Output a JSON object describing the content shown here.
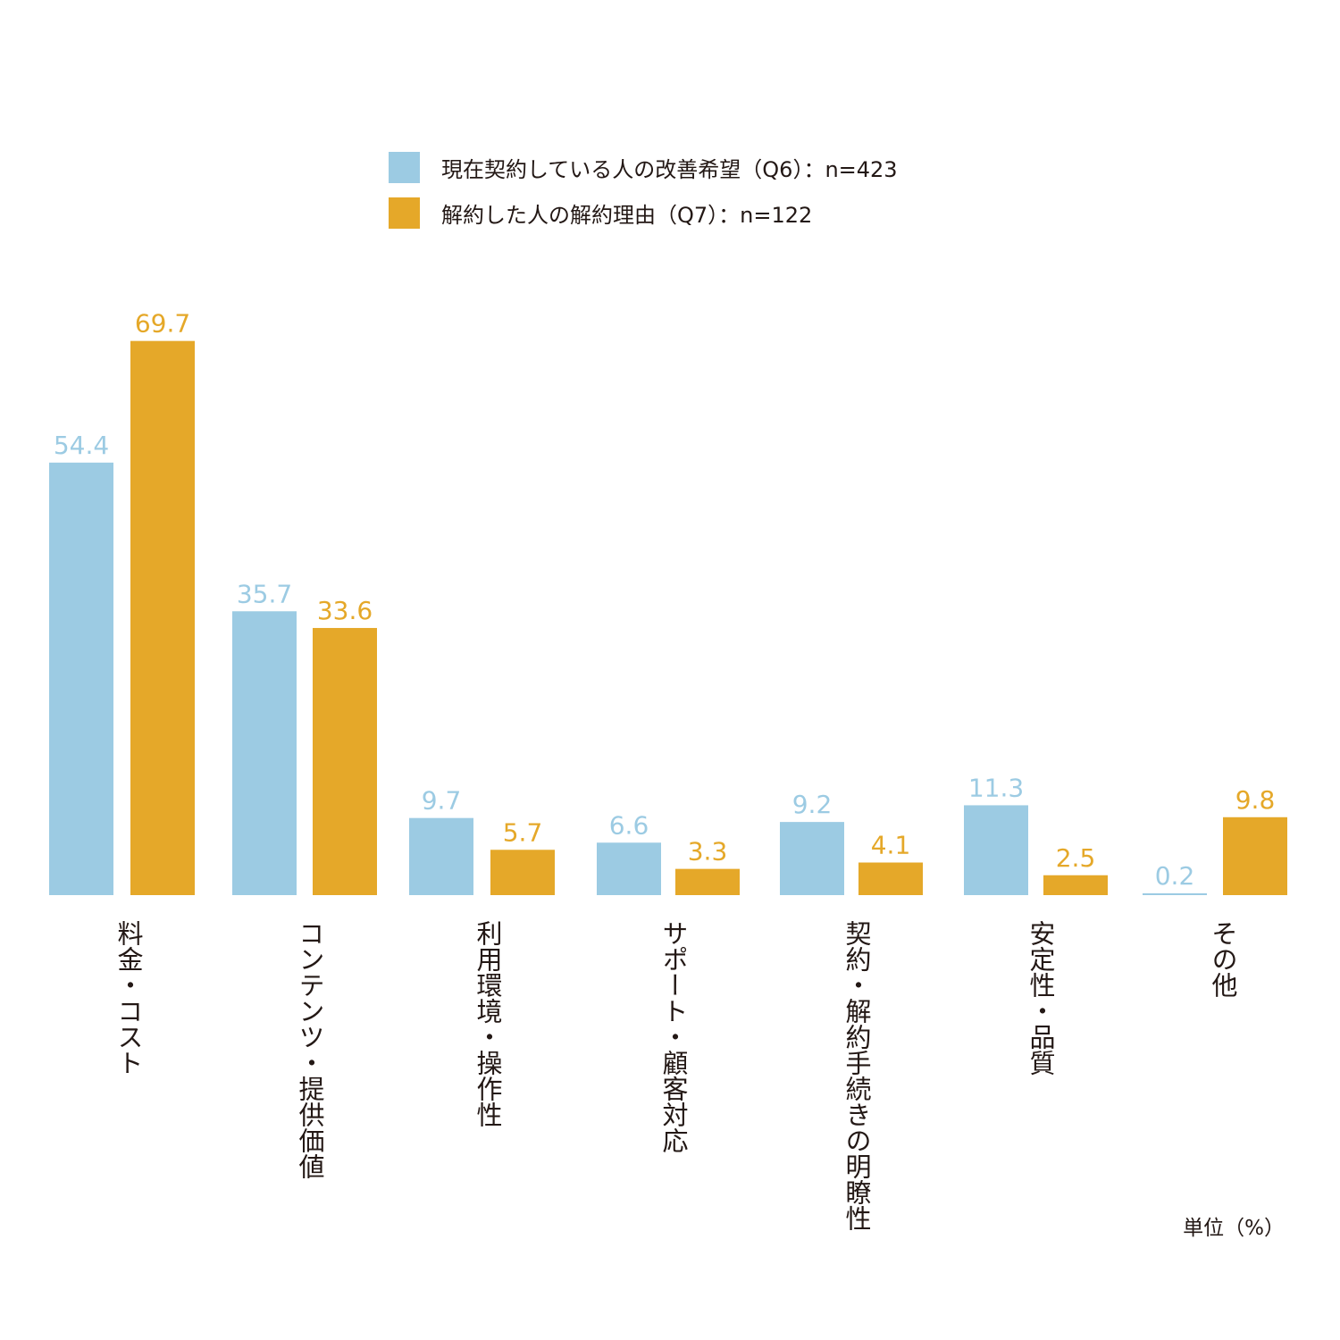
{
  "chart_data": {
    "type": "bar",
    "categories": [
      "料金・コスト",
      "コンテンツ・提供価値",
      "利用環境・操作性",
      "サポート・顧客対応",
      "契約・解約手続きの明瞭性",
      "安定性・品質",
      "その他"
    ],
    "series": [
      {
        "name": "現在契約している人の改善希望（Q6）：n=423",
        "color": "#9ccbe3",
        "values": [
          54.4,
          35.7,
          9.7,
          6.6,
          9.2,
          11.3,
          0.2
        ]
      },
      {
        "name": "解約した人の解約理由（Q7）：n=122",
        "color": "#e5a829",
        "values": [
          69.7,
          33.6,
          5.7,
          3.3,
          4.1,
          2.5,
          9.8
        ]
      }
    ],
    "value_labels": [
      [
        "54.4",
        "35.7",
        "9.7",
        "6.6",
        "9.2",
        "11.3",
        "0.2"
      ],
      [
        "69.7",
        "33.6",
        "5.7",
        "3.3",
        "4.1",
        "2.5",
        "9.8"
      ]
    ],
    "legend_position": "top",
    "grid": false,
    "ylim": [
      0,
      80
    ]
  },
  "unit_label": "単位（%）"
}
